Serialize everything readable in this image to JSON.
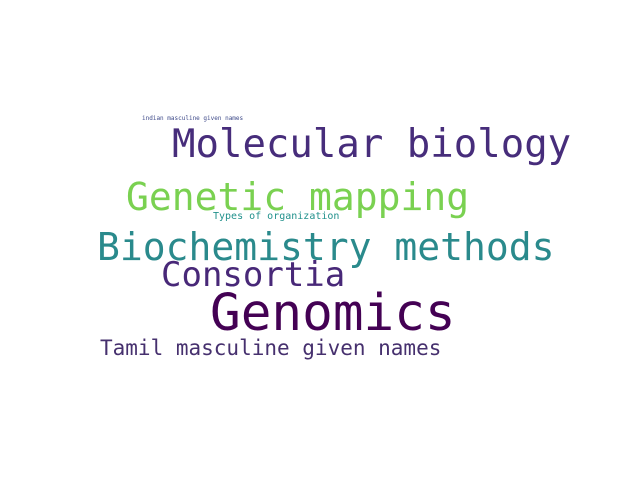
{
  "word_cloud": {
    "words": [
      {
        "text": "indian masculine given names",
        "color": "#3e4a89"
      },
      {
        "text": "Molecular biology",
        "color": "#472d7b"
      },
      {
        "text": "Genetic mapping",
        "color": "#7ad151"
      },
      {
        "text": "Types of organization",
        "color": "#21918c"
      },
      {
        "text": "Biochemistry methods",
        "color": "#2a8a8c"
      },
      {
        "text": "Consortia",
        "color": "#482878"
      },
      {
        "text": "Genomics",
        "color": "#440154"
      },
      {
        "text": "Tamil masculine given names",
        "color": "#46306e"
      }
    ]
  }
}
